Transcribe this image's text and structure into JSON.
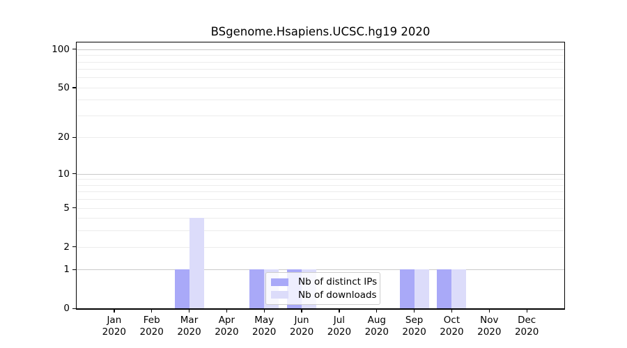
{
  "chart_data": {
    "type": "bar",
    "title": "BSgenome.Hsapiens.UCSC.hg19 2020",
    "categories": [
      "Jan 2020",
      "Feb 2020",
      "Mar 2020",
      "Apr 2020",
      "May 2020",
      "Jun 2020",
      "Jul 2020",
      "Aug 2020",
      "Sep 2020",
      "Oct 2020",
      "Nov 2020",
      "Dec 2020"
    ],
    "series": [
      {
        "name": "Nb of distinct IPs",
        "color": "#a9a9f8",
        "values": [
          0,
          0,
          1,
          0,
          1,
          1,
          0,
          0,
          1,
          1,
          0,
          0
        ]
      },
      {
        "name": "Nb of downloads",
        "color": "#dcdcfa",
        "values": [
          0,
          0,
          4,
          0,
          1,
          1,
          0,
          0,
          1,
          1,
          0,
          0
        ]
      }
    ],
    "xlabel": "",
    "ylabel": "",
    "yscale": "log1p",
    "ylim": [
      0,
      115
    ],
    "yticks": [
      0,
      1,
      2,
      5,
      10,
      20,
      50,
      100
    ],
    "gridlines": {
      "major": [
        1,
        10,
        100
      ],
      "minor": [
        2,
        3,
        4,
        5,
        6,
        7,
        8,
        9,
        20,
        30,
        40,
        50,
        60,
        70,
        80,
        90
      ]
    },
    "legend": {
      "position": "lower-center",
      "items": [
        "Nb of distinct IPs",
        "Nb of downloads"
      ]
    },
    "colors": {
      "axis": "#000000",
      "grid_major": "#c9c9c9",
      "grid_minor": "#ececec",
      "legend_border": "#cccccc"
    }
  }
}
